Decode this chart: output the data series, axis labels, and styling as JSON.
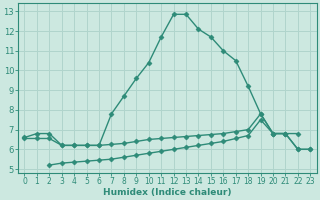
{
  "line1_x": [
    0,
    1,
    2,
    3,
    4,
    5,
    6,
    7,
    8,
    9,
    10,
    11,
    12,
    13,
    14,
    15,
    16,
    17,
    18,
    19,
    20,
    21,
    22
  ],
  "line1_y": [
    6.6,
    6.8,
    6.8,
    6.2,
    6.2,
    6.2,
    6.2,
    7.8,
    8.7,
    9.6,
    10.4,
    11.7,
    12.85,
    12.85,
    12.1,
    11.7,
    11.0,
    10.5,
    9.2,
    7.8,
    6.8,
    6.8,
    6.8
  ],
  "line2_x": [
    0,
    1,
    2,
    3,
    4,
    5,
    6,
    7,
    8,
    9,
    10,
    11,
    12,
    13,
    14,
    15,
    16,
    17,
    18,
    19,
    20,
    21,
    22,
    23
  ],
  "line2_y": [
    6.55,
    6.55,
    6.55,
    6.2,
    6.2,
    6.2,
    6.2,
    6.25,
    6.3,
    6.4,
    6.5,
    6.55,
    6.6,
    6.65,
    6.7,
    6.75,
    6.8,
    6.9,
    7.0,
    7.8,
    6.8,
    6.8,
    6.0,
    6.0
  ],
  "line3_x": [
    2,
    3,
    4,
    5,
    6,
    7,
    8,
    9,
    10,
    11,
    12,
    13,
    14,
    15,
    16,
    17,
    18,
    19,
    20,
    21,
    22,
    23
  ],
  "line3_y": [
    5.2,
    5.3,
    5.35,
    5.4,
    5.45,
    5.5,
    5.6,
    5.7,
    5.8,
    5.9,
    6.0,
    6.1,
    6.2,
    6.3,
    6.4,
    6.55,
    6.7,
    7.5,
    6.8,
    6.8,
    6.0,
    6.0
  ],
  "line_color": "#2e8b78",
  "bg_color": "#cce8e0",
  "grid_color": "#b0d4cc",
  "xlim": [
    -0.5,
    23.5
  ],
  "ylim": [
    4.8,
    13.4
  ],
  "xlabel": "Humidex (Indice chaleur)",
  "yticks": [
    5,
    6,
    7,
    8,
    9,
    10,
    11,
    12,
    13
  ],
  "xticks": [
    0,
    1,
    2,
    3,
    4,
    5,
    6,
    7,
    8,
    9,
    10,
    11,
    12,
    13,
    14,
    15,
    16,
    17,
    18,
    19,
    20,
    21,
    22,
    23
  ],
  "tick_fontsize": 5.5,
  "label_fontsize": 6.5
}
